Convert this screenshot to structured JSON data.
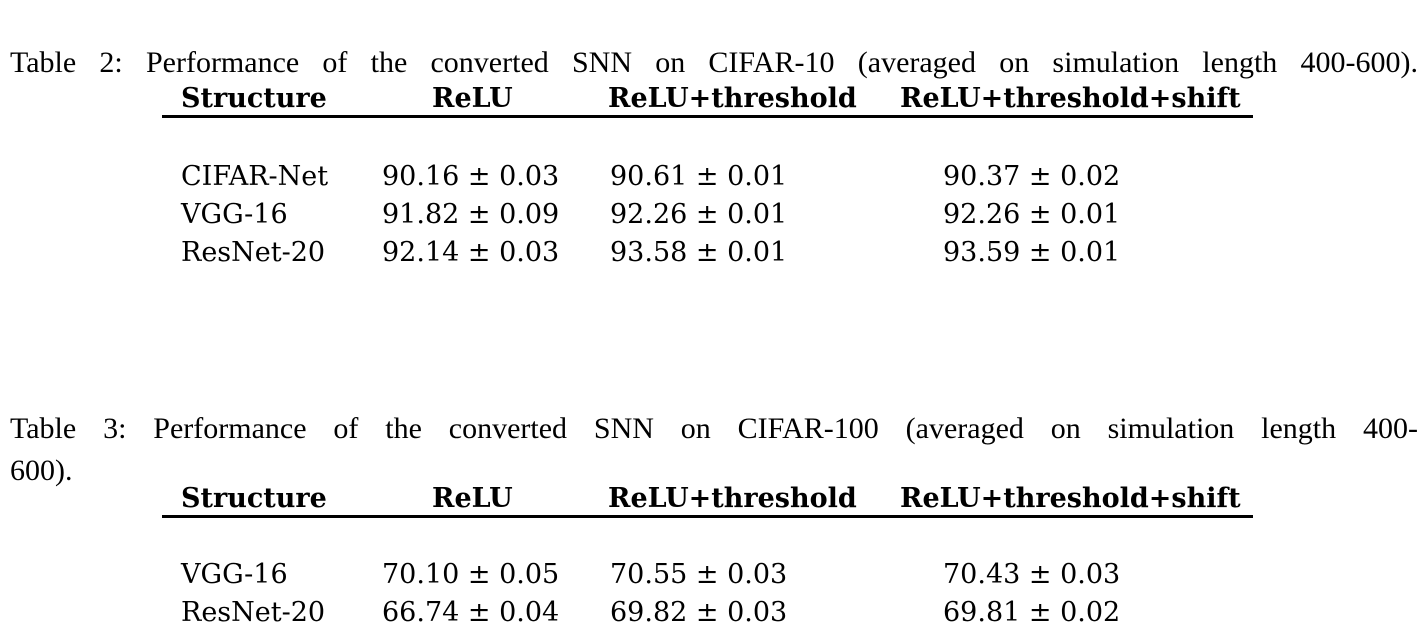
{
  "page": {
    "background_color": "#ffffff",
    "text_color": "#000000",
    "rule_color": "#000000"
  },
  "table2": {
    "caption": "Table 2: Performance of the converted SNN on CIFAR-10 (averaged on simulation length 400-600).",
    "columns": [
      "Structure",
      "ReLU",
      "ReLU+threshold",
      "ReLU+threshold+shift"
    ],
    "rows": [
      [
        "CIFAR-Net",
        "90.16 ± 0.03",
        "90.61 ± 0.01",
        "90.37 ± 0.02"
      ],
      [
        "VGG-16",
        "91.82 ± 0.09",
        "92.26 ± 0.01",
        "92.26 ± 0.01"
      ],
      [
        "ResNet-20",
        "92.14 ± 0.03",
        "93.58 ± 0.01",
        "93.59 ± 0.01"
      ]
    ]
  },
  "table3": {
    "caption_line1": "Table 3: Performance of the converted SNN on CIFAR-100 (averaged on simulation length 400-",
    "caption_line2": "600).",
    "columns": [
      "Structure",
      "ReLU",
      "ReLU+threshold",
      "ReLU+threshold+shift"
    ],
    "rows": [
      [
        "VGG-16",
        "70.10 ± 0.05",
        "70.55 ± 0.03",
        "70.43 ± 0.03"
      ],
      [
        "ResNet-20",
        "66.74 ± 0.04",
        "69.82 ± 0.03",
        "69.81 ± 0.02"
      ]
    ]
  }
}
